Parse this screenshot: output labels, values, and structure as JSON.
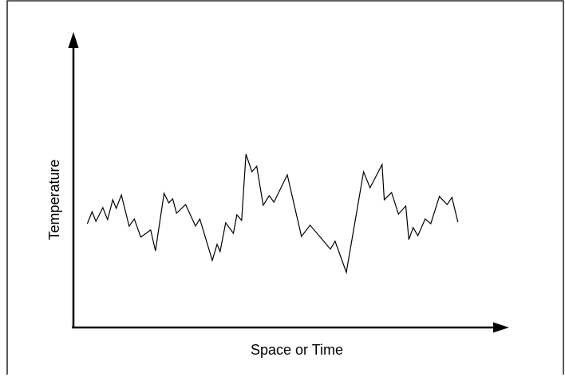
{
  "chart_data": {
    "type": "line",
    "title": "",
    "xlabel": "Space or Time",
    "ylabel": "Temperature",
    "grid": false,
    "legend": "none",
    "axis_ticks": false,
    "xlim": [
      0,
      100
    ],
    "ylim": [
      0,
      100
    ],
    "series": [
      {
        "color": "#000000",
        "points": [
          [
            3.6,
            43.3
          ],
          [
            4.7,
            48.3
          ],
          [
            5.6,
            44.3
          ],
          [
            7.2,
            50.0
          ],
          [
            8.3,
            45.0
          ],
          [
            9.5,
            53.3
          ],
          [
            10.3,
            49.7
          ],
          [
            11.5,
            55.3
          ],
          [
            13.3,
            42.3
          ],
          [
            14.5,
            45.3
          ],
          [
            16.0,
            37.7
          ],
          [
            18.3,
            40.7
          ],
          [
            19.4,
            32.0
          ],
          [
            21.4,
            56.0
          ],
          [
            22.5,
            52.0
          ],
          [
            23.4,
            53.7
          ],
          [
            24.3,
            47.7
          ],
          [
            26.4,
            51.3
          ],
          [
            28.7,
            42.3
          ],
          [
            29.7,
            45.3
          ],
          [
            32.6,
            28.0
          ],
          [
            33.7,
            34.7
          ],
          [
            34.4,
            31.7
          ],
          [
            35.7,
            43.7
          ],
          [
            37.5,
            39.3
          ],
          [
            38.3,
            47.0
          ],
          [
            39.4,
            44.7
          ],
          [
            40.4,
            72.3
          ],
          [
            41.8,
            65.0
          ],
          [
            42.9,
            67.3
          ],
          [
            44.4,
            51.0
          ],
          [
            45.8,
            55.0
          ],
          [
            46.9,
            52.3
          ],
          [
            50.0,
            63.7
          ],
          [
            53.3,
            38.0
          ],
          [
            55.3,
            42.7
          ],
          [
            60.0,
            32.7
          ],
          [
            61.1,
            36.0
          ],
          [
            63.7,
            23.0
          ],
          [
            67.7,
            65.0
          ],
          [
            69.2,
            58.3
          ],
          [
            72.0,
            68.0
          ],
          [
            72.5,
            53.3
          ],
          [
            74.2,
            56.3
          ],
          [
            75.8,
            47.3
          ],
          [
            77.5,
            50.7
          ],
          [
            78.2,
            36.7
          ],
          [
            79.2,
            41.7
          ],
          [
            80.3,
            38.3
          ],
          [
            82.0,
            45.3
          ],
          [
            83.3,
            43.3
          ],
          [
            85.3,
            54.7
          ],
          [
            87.1,
            51.3
          ],
          [
            88.2,
            54.3
          ],
          [
            89.6,
            44.0
          ]
        ]
      }
    ]
  }
}
